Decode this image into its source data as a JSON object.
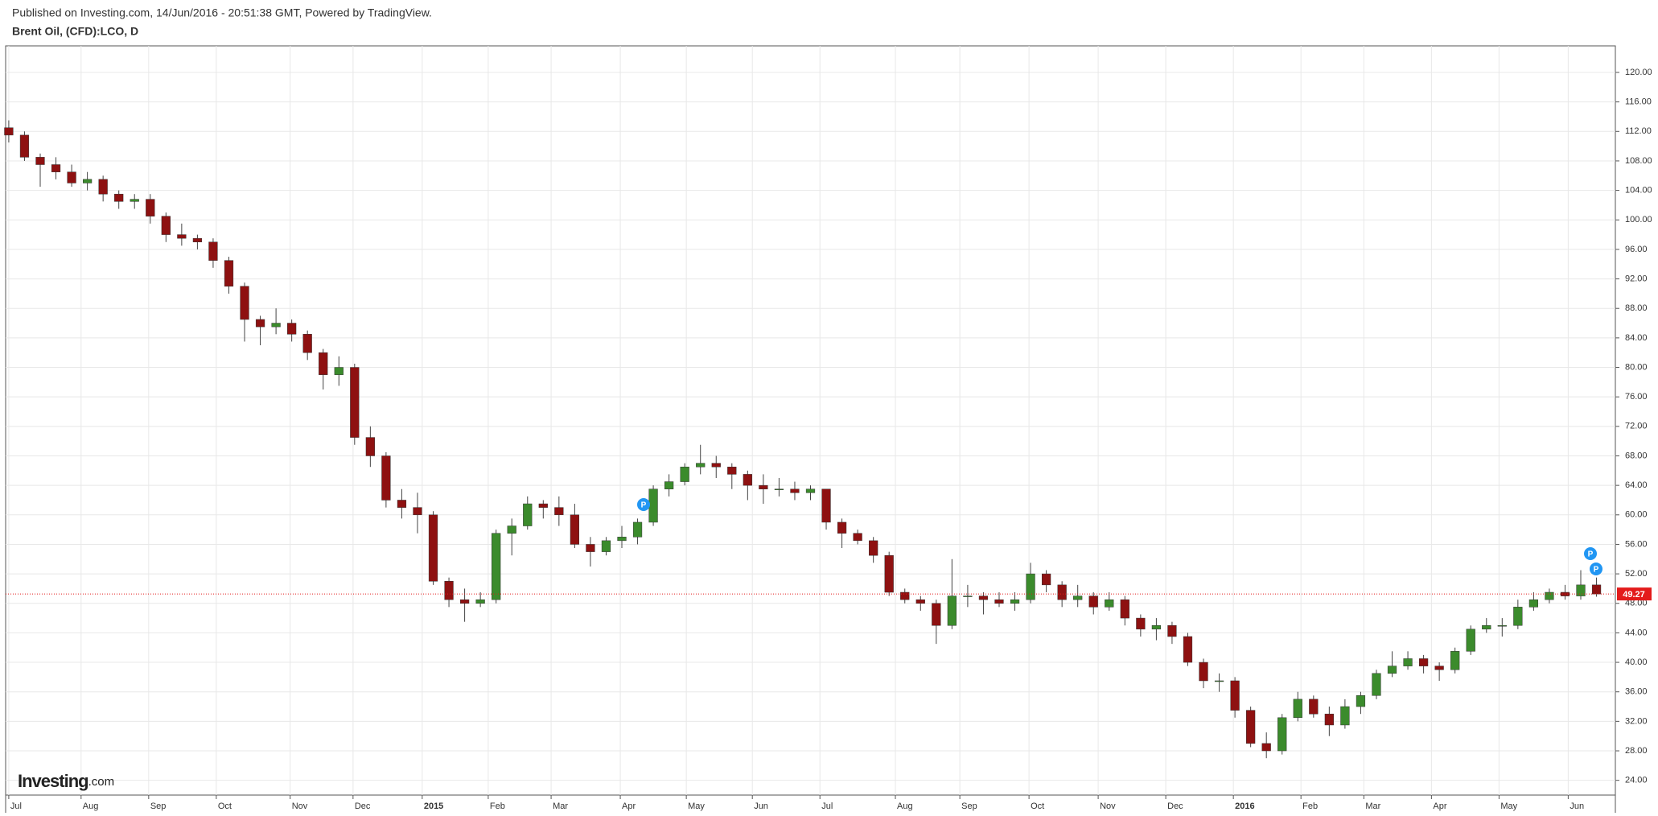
{
  "header": {
    "published": "Published on Investing.com, 14/Jun/2016 - 20:51:38 GMT, Powered by TradingView.",
    "symbol": "Brent Oil, (CFD):LCO, D"
  },
  "logo": {
    "brand": "Investing",
    "suffix": ".com"
  },
  "chart_data": {
    "type": "candlestick",
    "open": [
      112.5,
      111.5,
      108.5,
      107.5,
      106.5,
      105.0,
      105.5,
      103.5,
      102.5,
      102.8,
      100.5,
      98.0,
      97.5,
      97.0,
      94.5,
      91.0,
      86.5,
      85.5,
      86.0,
      84.5,
      82.0,
      79.0,
      80.0,
      70.5,
      68.0,
      62.0,
      61.0,
      60.0,
      51.0,
      48.5,
      48.0,
      48.5,
      57.5,
      58.5,
      61.5,
      61.0,
      60.0,
      56.0,
      55.0,
      56.5,
      57.0,
      59.0,
      63.5,
      64.5,
      66.5,
      67.0,
      66.5,
      65.5,
      64.0,
      63.5,
      63.5,
      63.0,
      63.5,
      59.0,
      57.5,
      56.5,
      54.5,
      49.5,
      48.5,
      48.0,
      45.0,
      49.0,
      49.0,
      48.5,
      48.0,
      48.5,
      52.0,
      50.5,
      48.5,
      49.0,
      47.5,
      48.5,
      46.0,
      44.5,
      45.0,
      43.5,
      40.0,
      37.5,
      37.5,
      33.5,
      29.0,
      28.0,
      32.5,
      35.0,
      33.0,
      31.5,
      34.0,
      35.5,
      38.5,
      39.5,
      40.5,
      39.5,
      39.0,
      41.5,
      44.5,
      45.0,
      45.0,
      47.5,
      48.5,
      49.5,
      49.0,
      50.5
    ],
    "high": [
      113.5,
      112.0,
      109.0,
      108.5,
      107.5,
      106.5,
      106.0,
      104.0,
      103.5,
      103.5,
      101.0,
      99.5,
      98.0,
      97.5,
      95.0,
      91.5,
      87.0,
      88.0,
      86.5,
      85.0,
      82.5,
      81.5,
      80.5,
      72.0,
      68.5,
      63.5,
      63.0,
      60.5,
      51.5,
      50.0,
      49.5,
      58.0,
      59.5,
      62.5,
      62.0,
      62.5,
      61.5,
      57.0,
      57.0,
      58.5,
      59.5,
      64.0,
      65.5,
      67.0,
      69.5,
      68.0,
      67.0,
      66.0,
      65.5,
      65.0,
      64.5,
      64.0,
      63.5,
      59.5,
      58.0,
      57.0,
      55.0,
      50.0,
      49.0,
      48.5,
      54.0,
      50.5,
      49.5,
      49.5,
      49.5,
      53.5,
      52.5,
      51.0,
      50.5,
      49.5,
      49.5,
      49.0,
      46.5,
      46.0,
      45.5,
      44.0,
      40.5,
      38.5,
      38.0,
      34.0,
      30.5,
      33.0,
      36.0,
      35.5,
      34.0,
      35.0,
      36.0,
      39.0,
      41.5,
      41.5,
      41.0,
      40.0,
      42.0,
      45.0,
      46.0,
      46.0,
      48.5,
      49.5,
      50.0,
      50.5,
      52.5,
      51.5
    ],
    "low": [
      110.5,
      108.0,
      104.5,
      105.5,
      104.5,
      104.0,
      102.5,
      101.5,
      101.5,
      99.5,
      97.0,
      96.5,
      96.0,
      93.5,
      90.0,
      83.5,
      83.0,
      84.5,
      83.5,
      81.0,
      77.0,
      77.5,
      69.5,
      66.5,
      61.0,
      59.5,
      57.5,
      50.5,
      47.5,
      45.5,
      47.5,
      48.0,
      54.5,
      58.0,
      59.5,
      58.5,
      55.5,
      53.0,
      54.5,
      55.5,
      56.0,
      58.5,
      62.5,
      64.0,
      65.5,
      65.0,
      63.5,
      62.0,
      61.5,
      62.5,
      62.0,
      62.0,
      58.0,
      55.5,
      56.0,
      53.5,
      49.0,
      48.0,
      47.0,
      42.5,
      44.5,
      47.5,
      46.5,
      47.5,
      47.0,
      48.0,
      49.5,
      47.5,
      47.5,
      46.5,
      47.0,
      45.0,
      43.5,
      43.0,
      42.5,
      39.5,
      36.5,
      36.0,
      32.5,
      28.5,
      27.0,
      27.5,
      32.0,
      32.5,
      30.0,
      31.0,
      33.0,
      35.0,
      38.0,
      39.0,
      38.5,
      37.5,
      38.5,
      41.0,
      44.0,
      43.5,
      44.5,
      47.0,
      48.0,
      48.5,
      48.5,
      48.9
    ],
    "close": [
      111.5,
      108.5,
      107.5,
      106.5,
      105.0,
      105.5,
      103.5,
      102.5,
      102.8,
      100.5,
      98.0,
      97.5,
      97.0,
      94.5,
      91.0,
      86.5,
      85.5,
      86.0,
      84.5,
      82.0,
      79.0,
      80.0,
      70.5,
      68.0,
      62.0,
      61.0,
      60.0,
      51.0,
      48.5,
      48.0,
      48.5,
      57.5,
      58.5,
      61.5,
      61.0,
      60.0,
      56.0,
      55.0,
      56.5,
      57.0,
      59.0,
      63.5,
      64.5,
      66.5,
      67.0,
      66.5,
      65.5,
      64.0,
      63.5,
      63.5,
      63.0,
      63.5,
      59.0,
      57.5,
      56.5,
      54.5,
      49.5,
      48.5,
      48.0,
      45.0,
      49.0,
      49.0,
      48.5,
      48.0,
      48.5,
      52.0,
      50.5,
      48.5,
      49.0,
      47.5,
      48.5,
      46.0,
      44.5,
      45.0,
      43.5,
      40.0,
      37.5,
      37.5,
      33.5,
      29.0,
      28.0,
      32.5,
      35.0,
      33.0,
      31.5,
      34.0,
      35.5,
      38.5,
      39.5,
      40.5,
      39.5,
      39.0,
      41.5,
      44.5,
      45.0,
      45.0,
      47.5,
      48.5,
      49.5,
      49.0,
      50.5,
      49.27
    ],
    "up_color": "#3b8b2c",
    "down_color": "#8e1111",
    "last_price_color": "#e31b1b",
    "grid": true,
    "xlim": [
      -0.2,
      102.2
    ],
    "xticks": [
      {
        "value": 0,
        "label": "Jul"
      },
      {
        "value": 4.6,
        "label": "Aug"
      },
      {
        "value": 8.9,
        "label": "Sep"
      },
      {
        "value": 13.2,
        "label": "Oct"
      },
      {
        "value": 17.9,
        "label": "Nov"
      },
      {
        "value": 21.9,
        "label": "Dec"
      },
      {
        "value": 26.3,
        "label": "2015"
      },
      {
        "value": 30.5,
        "label": "Feb"
      },
      {
        "value": 34.5,
        "label": "Mar"
      },
      {
        "value": 38.9,
        "label": "Apr"
      },
      {
        "value": 43.1,
        "label": "May"
      },
      {
        "value": 47.3,
        "label": "Jun"
      },
      {
        "value": 51.6,
        "label": "Jul"
      },
      {
        "value": 56.4,
        "label": "Aug"
      },
      {
        "value": 60.5,
        "label": "Sep"
      },
      {
        "value": 64.9,
        "label": "Oct"
      },
      {
        "value": 69.3,
        "label": "Nov"
      },
      {
        "value": 73.6,
        "label": "Dec"
      },
      {
        "value": 77.9,
        "label": "2016"
      },
      {
        "value": 82.2,
        "label": "Feb"
      },
      {
        "value": 86.2,
        "label": "Mar"
      },
      {
        "value": 90.5,
        "label": "Apr"
      },
      {
        "value": 94.8,
        "label": "May"
      },
      {
        "value": 99.2,
        "label": "Jun"
      }
    ],
    "ylim": [
      22,
      123.6
    ],
    "yticks": [
      {
        "value": 24,
        "label": "24.00"
      },
      {
        "value": 28,
        "label": "28.00"
      },
      {
        "value": 32,
        "label": "32.00"
      },
      {
        "value": 36,
        "label": "36.00"
      },
      {
        "value": 40,
        "label": "40.00"
      },
      {
        "value": 44,
        "label": "44.00"
      },
      {
        "value": 48,
        "label": "48.00"
      },
      {
        "value": 52,
        "label": "52.00"
      },
      {
        "value": 56,
        "label": "56.00"
      },
      {
        "value": 60,
        "label": "60.00"
      },
      {
        "value": 64,
        "label": "64.00"
      },
      {
        "value": 68,
        "label": "68.00"
      },
      {
        "value": 72,
        "label": "72.00"
      },
      {
        "value": 76,
        "label": "76.00"
      },
      {
        "value": 80,
        "label": "80.00"
      },
      {
        "value": 84,
        "label": "84.00"
      },
      {
        "value": 88,
        "label": "88.00"
      },
      {
        "value": 92,
        "label": "92.00"
      },
      {
        "value": 96,
        "label": "96.00"
      },
      {
        "value": 100,
        "label": "100.00"
      },
      {
        "value": 104,
        "label": "104.00"
      },
      {
        "value": 108,
        "label": "108.00"
      },
      {
        "value": 112,
        "label": "112.00"
      },
      {
        "value": 116,
        "label": "116.00"
      },
      {
        "value": 120,
        "label": "120.00"
      }
    ]
  }
}
